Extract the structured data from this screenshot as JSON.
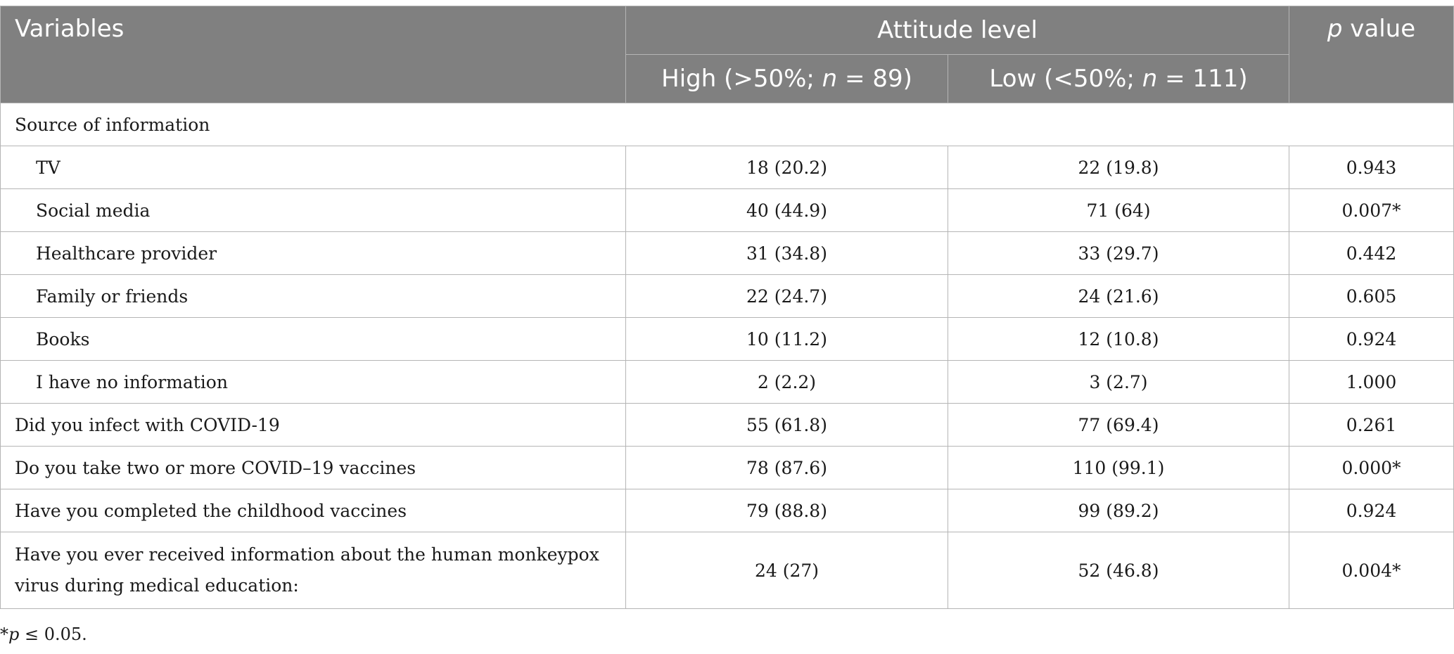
{
  "header": {
    "variables": "Variables",
    "attitude_level": "Attitude level",
    "p_label": "p",
    "p_rest": " value",
    "high_pre": "High (>50%; ",
    "high_n": "n",
    "high_post": " = 89)",
    "low_pre": "Low (<50%; ",
    "low_n": "n",
    "low_post": " = 111)"
  },
  "section_label": "Source of information",
  "rows": [
    {
      "label": "TV",
      "high": "18 (20.2)",
      "low": "22 (19.8)",
      "p": "0.943"
    },
    {
      "label": "Social media",
      "high": "40 (44.9)",
      "low": "71 (64)",
      "p": "0.007*"
    },
    {
      "label": "Healthcare provider",
      "high": "31 (34.8)",
      "low": "33 (29.7)",
      "p": "0.442"
    },
    {
      "label": "Family or friends",
      "high": "22 (24.7)",
      "low": "24 (21.6)",
      "p": "0.605"
    },
    {
      "label": "Books",
      "high": "10 (11.2)",
      "low": "12 (10.8)",
      "p": "0.924"
    },
    {
      "label": "I have no information",
      "high": "2 (2.2)",
      "low": "3 (2.7)",
      "p": "1.000"
    },
    {
      "label": "Did you infect with COVID-19",
      "high": "55 (61.8)",
      "low": "77 (69.4)",
      "p": "0.261"
    },
    {
      "label": "Do you take two or more COVID–19 vaccines",
      "high": "78 (87.6)",
      "low": "110 (99.1)",
      "p": "0.000*"
    },
    {
      "label": "Have you completed the childhood vaccines",
      "high": "79 (88.8)",
      "low": "99 (89.2)",
      "p": "0.924"
    },
    {
      "label": "Have you ever received information about the human monkeypox virus during medical education:",
      "high": "24 (27)",
      "low": "52 (46.8)",
      "p": "0.004*"
    }
  ],
  "footnote": {
    "star": "*",
    "p": "p",
    "rest": " ≤ 0.05."
  }
}
